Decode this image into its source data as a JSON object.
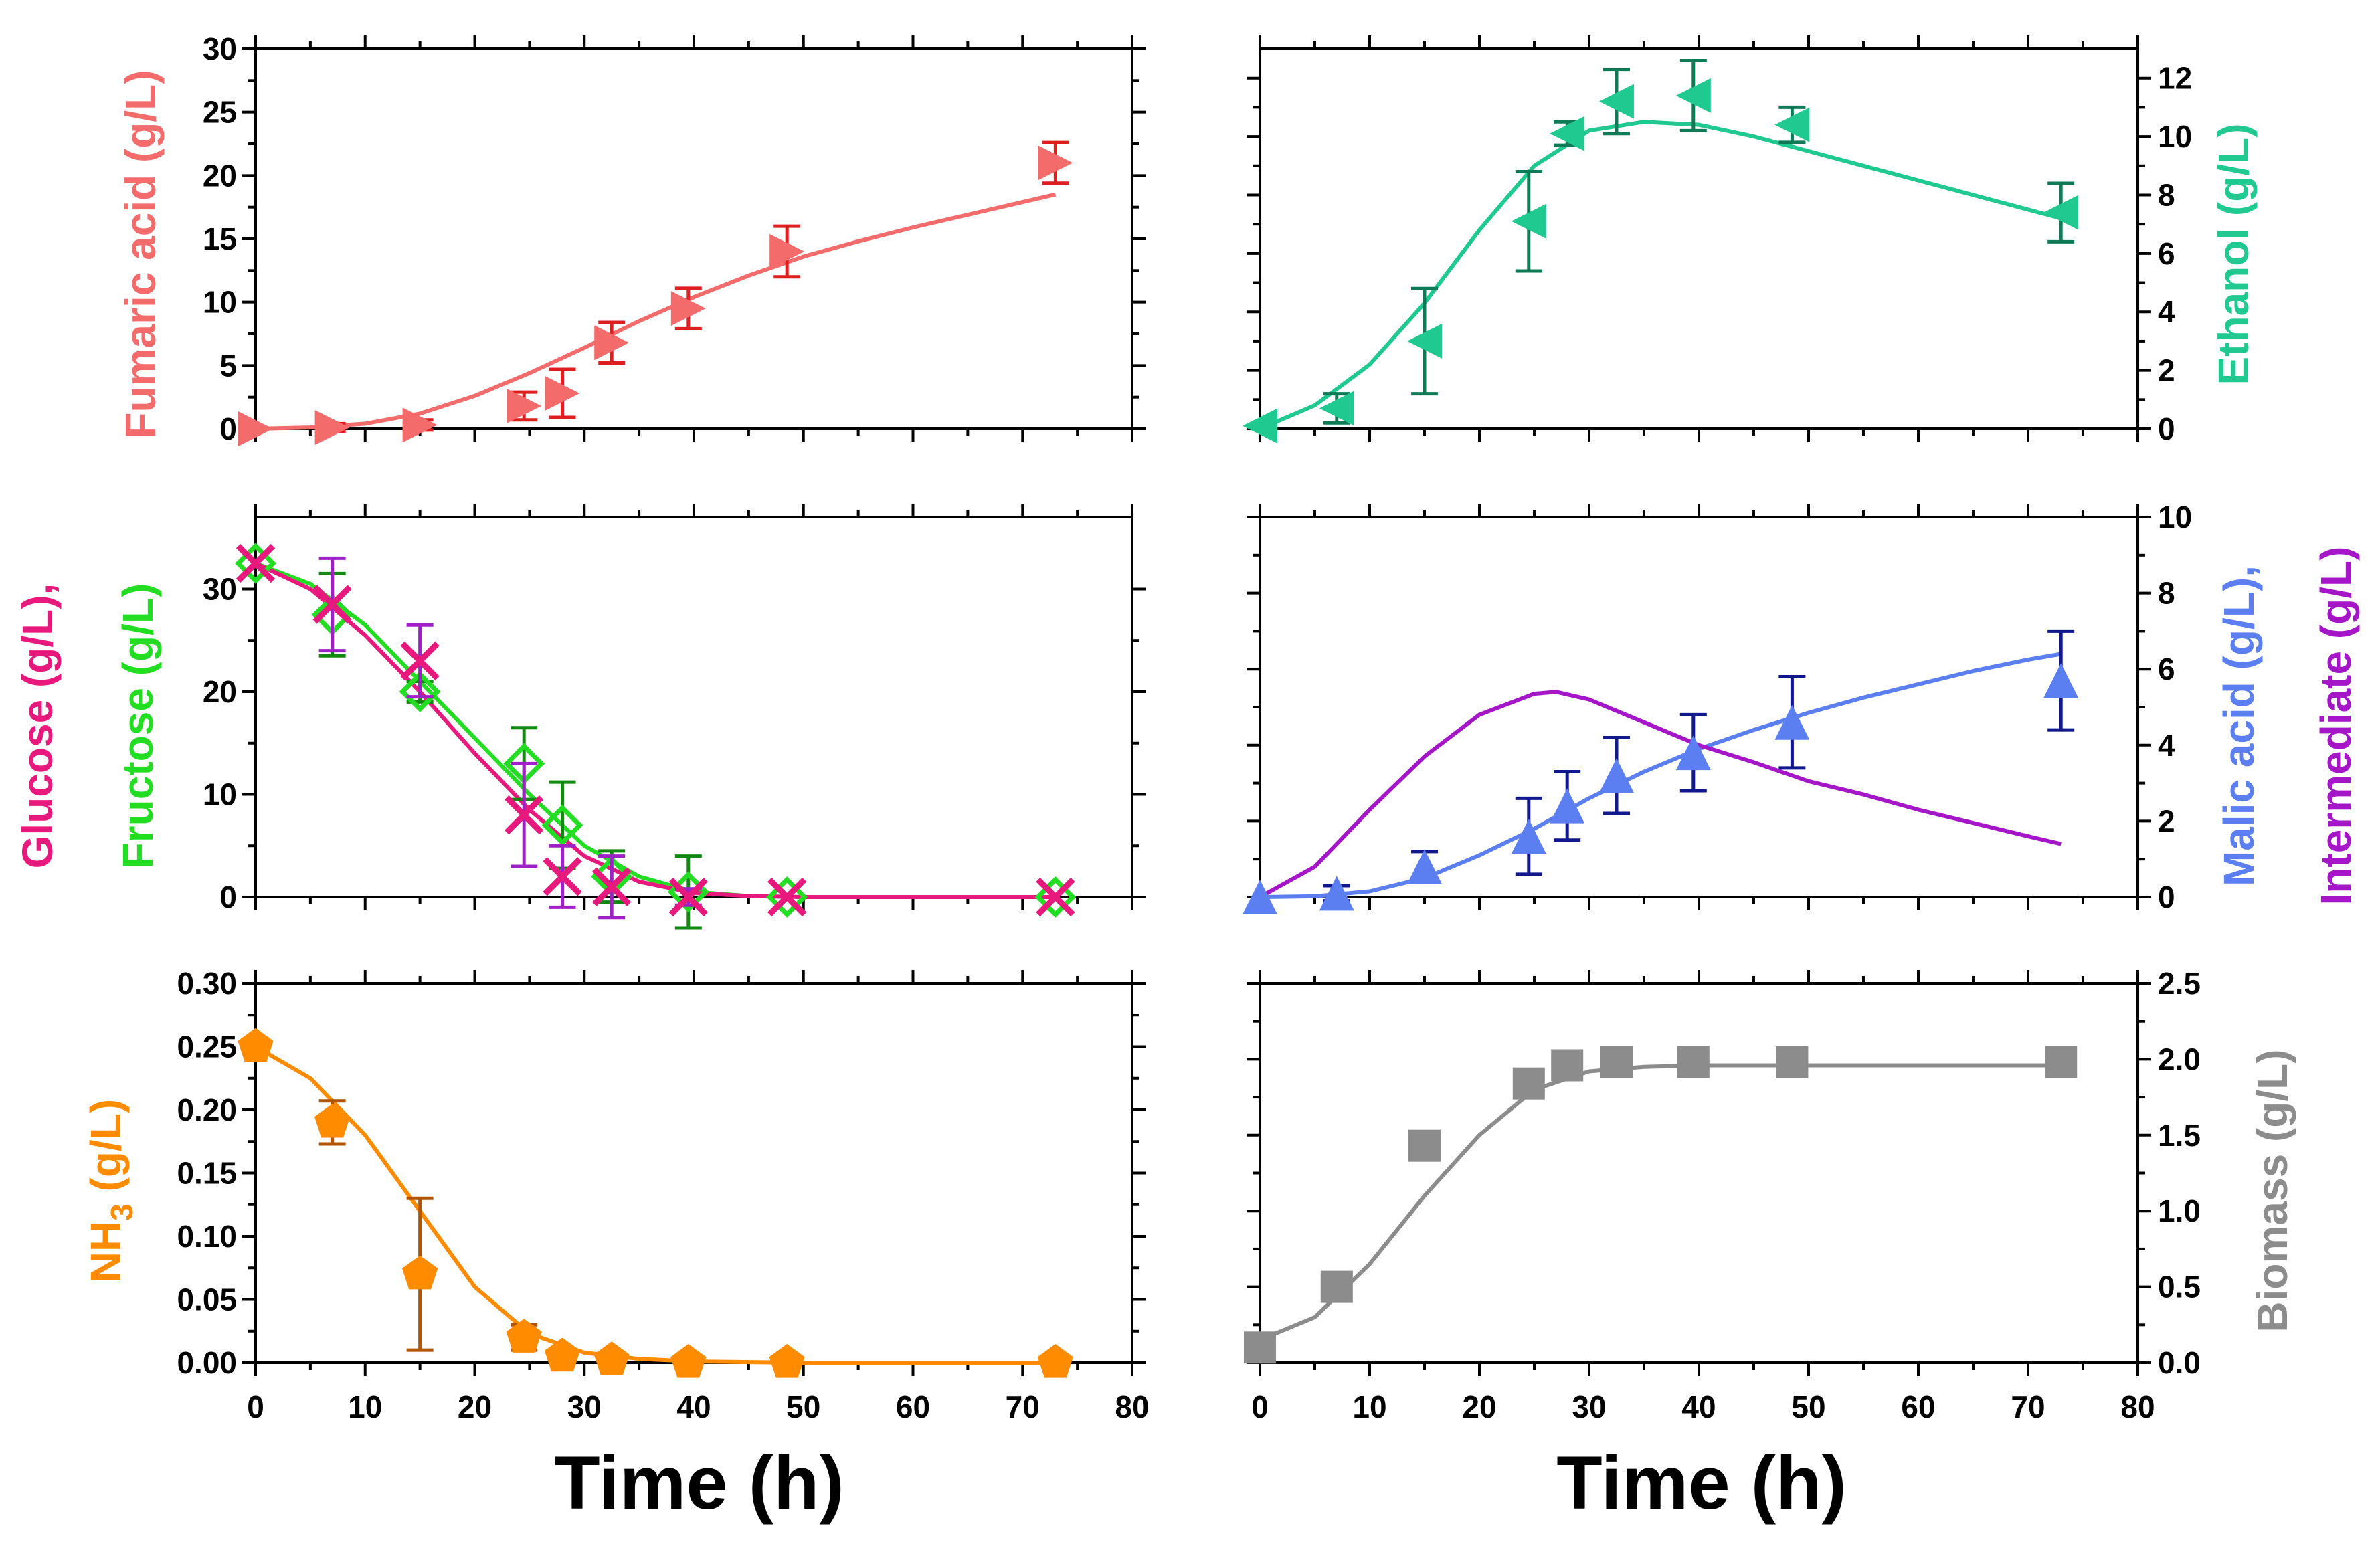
{
  "figure": {
    "xlabel_left": "Time (h)",
    "xlabel_right": "Time (h)"
  },
  "chart_data": [
    {
      "id": "fumaric",
      "type": "scatter",
      "position": "top-left",
      "ylabel": "Fumaric acid (g/L)",
      "ylabel_color": "#f46b6b",
      "axis_side": "left",
      "xlim": [
        0,
        80
      ],
      "ylim": [
        0,
        30
      ],
      "yticks": [
        0,
        5,
        10,
        15,
        20,
        25,
        30
      ],
      "ytick_labels": [
        "0",
        "5",
        "10",
        "15",
        "20",
        "25",
        "30"
      ],
      "xticks": [
        0,
        10,
        20,
        30,
        40,
        50,
        60,
        70,
        80
      ],
      "xtick_labels": [],
      "series": [
        {
          "name": "Fumaric acid",
          "marker": "triangle-right",
          "color": "#f46b6b",
          "err_color": "#dd1f1f",
          "x": [
            0,
            7,
            15,
            24.5,
            28,
            32.5,
            39.5,
            48.5,
            73
          ],
          "y": [
            0,
            0.1,
            0.3,
            1.8,
            2.8,
            6.8,
            9.5,
            14,
            21
          ],
          "err": [
            0,
            0.3,
            0.4,
            1.1,
            1.9,
            1.6,
            1.6,
            2.0,
            1.6
          ],
          "fit_x": [
            0,
            5,
            10,
            15,
            20,
            25,
            30,
            35,
            40,
            45,
            50,
            55,
            60,
            65,
            70,
            73
          ],
          "fit_y": [
            0,
            0.1,
            0.4,
            1.2,
            2.6,
            4.4,
            6.4,
            8.5,
            10.4,
            12.1,
            13.6,
            14.8,
            15.9,
            16.9,
            17.9,
            18.5
          ],
          "fit_color": "#f46b6b"
        }
      ]
    },
    {
      "id": "ethanol",
      "type": "scatter",
      "position": "top-right",
      "ylabel": "Ethanol (g/L)",
      "ylabel_color": "#1fc98f",
      "axis_side": "right",
      "xlim": [
        0,
        80
      ],
      "ylim": [
        0,
        13
      ],
      "yticks": [
        0,
        2,
        4,
        6,
        8,
        10,
        12
      ],
      "ytick_labels": [
        "0",
        "2",
        "4",
        "6",
        "8",
        "10",
        "12"
      ],
      "xticks": [
        0,
        10,
        20,
        30,
        40,
        50,
        60,
        70,
        80
      ],
      "xtick_labels": [],
      "series": [
        {
          "name": "Ethanol",
          "marker": "triangle-left",
          "color": "#1fc98f",
          "err_color": "#0f7a55",
          "x": [
            0,
            7,
            15,
            24.5,
            28,
            32.5,
            39.5,
            48.5,
            73
          ],
          "y": [
            0.1,
            0.7,
            3.0,
            7.1,
            10.1,
            11.2,
            11.4,
            10.4,
            7.4
          ],
          "err": [
            0,
            0.5,
            1.8,
            1.7,
            0.4,
            1.1,
            1.2,
            0.6,
            1.0
          ],
          "fit_x": [
            0,
            5,
            10,
            15,
            20,
            25,
            30,
            35,
            40,
            45,
            50,
            55,
            60,
            65,
            70,
            73
          ],
          "fit_y": [
            0,
            0.8,
            2.2,
            4.3,
            6.8,
            9.0,
            10.2,
            10.5,
            10.4,
            10.0,
            9.5,
            9.0,
            8.5,
            8.0,
            7.5,
            7.2
          ],
          "fit_color": "#1fc98f"
        }
      ]
    },
    {
      "id": "sugars",
      "type": "scatter",
      "position": "middle-left",
      "ylabel_parts": [
        {
          "text": "Glucose (g/L),",
          "color": "#e8197d"
        },
        {
          "text": "Fructose (g/L)",
          "color": "#22dd22"
        }
      ],
      "axis_side": "left",
      "xlim": [
        0,
        80
      ],
      "ylim": [
        0,
        37
      ],
      "yticks": [
        0,
        10,
        20,
        30
      ],
      "ytick_labels": [
        "0",
        "10",
        "20",
        "30"
      ],
      "xticks": [
        0,
        10,
        20,
        30,
        40,
        50,
        60,
        70,
        80
      ],
      "xtick_labels": [],
      "series": [
        {
          "name": "Fructose",
          "marker": "diamond-open",
          "color": "#22dd22",
          "err_color": "#128a12",
          "x": [
            0,
            7,
            15,
            24.5,
            28,
            32.5,
            39.5,
            48.5,
            73
          ],
          "y": [
            32.5,
            27.5,
            20,
            13,
            7,
            2,
            0.5,
            0,
            0
          ],
          "err": [
            0,
            4.0,
            1.0,
            3.5,
            4.2,
            2.5,
            3.5,
            0,
            0
          ],
          "fit_x": [
            0,
            5,
            10,
            15,
            20,
            25,
            30,
            35,
            40,
            45,
            50,
            60,
            73
          ],
          "fit_y": [
            32.5,
            30.5,
            26.5,
            21.0,
            15.5,
            10.0,
            5.0,
            2.0,
            0.5,
            0.1,
            0,
            0,
            0
          ],
          "fit_color": "#22dd22"
        },
        {
          "name": "Glucose",
          "marker": "x",
          "color": "#e8197d",
          "err_color": "#a020c8",
          "x": [
            0,
            7,
            15,
            24.5,
            28,
            32.5,
            39.5,
            48.5,
            73
          ],
          "y": [
            32.5,
            28.5,
            23,
            8,
            2,
            1,
            0,
            0,
            0
          ],
          "err": [
            0,
            4.5,
            3.5,
            5.0,
            3.0,
            3.0,
            0.8,
            0,
            0
          ],
          "fit_x": [
            0,
            5,
            10,
            15,
            20,
            25,
            30,
            35,
            40,
            45,
            50,
            60,
            73
          ],
          "fit_y": [
            32.5,
            30.0,
            25.5,
            20.0,
            14.0,
            8.5,
            4.0,
            1.5,
            0.4,
            0.1,
            0,
            0,
            0
          ],
          "fit_color": "#e8197d"
        }
      ]
    },
    {
      "id": "malic",
      "type": "scatter",
      "position": "middle-right",
      "ylabel_parts": [
        {
          "text": "Malic acid (g/L),",
          "color": "#5b7ef0"
        },
        {
          "text": "Intermediate (g/L)",
          "color": "#a516c8"
        }
      ],
      "axis_side": "right",
      "xlim": [
        0,
        80
      ],
      "ylim": [
        0,
        10
      ],
      "yticks": [
        0,
        2,
        4,
        6,
        8,
        10
      ],
      "ytick_labels": [
        "0",
        "2",
        "4",
        "6",
        "8",
        "10"
      ],
      "xticks": [
        0,
        10,
        20,
        30,
        40,
        50,
        60,
        70,
        80
      ],
      "xtick_labels": [],
      "series": [
        {
          "name": "Malic acid",
          "marker": "triangle-up",
          "color": "#5b7ef0",
          "err_color": "#10188c",
          "x": [
            0,
            7,
            15,
            24.5,
            28,
            32.5,
            39.5,
            48.5,
            73
          ],
          "y": [
            0,
            0.1,
            0.8,
            1.6,
            2.4,
            3.2,
            3.8,
            4.6,
            5.7
          ],
          "err": [
            0,
            0.2,
            0.4,
            1.0,
            0.9,
            1.0,
            1.0,
            1.2,
            1.3
          ],
          "fit_x": [
            0,
            5,
            10,
            15,
            20,
            25,
            30,
            35,
            40,
            45,
            50,
            55,
            60,
            65,
            70,
            73
          ],
          "fit_y": [
            0,
            0.02,
            0.15,
            0.5,
            1.1,
            1.8,
            2.6,
            3.3,
            3.9,
            4.4,
            4.85,
            5.25,
            5.6,
            5.95,
            6.25,
            6.4
          ],
          "fit_color": "#5b7ef0"
        },
        {
          "name": "Intermediate",
          "marker": "none",
          "color": "#a516c8",
          "x": [],
          "y": [],
          "err": [],
          "fit_x": [
            0,
            5,
            10,
            15,
            20,
            25,
            27,
            30,
            35,
            40,
            45,
            50,
            55,
            60,
            65,
            70,
            73
          ],
          "fit_y": [
            0,
            0.8,
            2.3,
            3.7,
            4.8,
            5.35,
            5.4,
            5.2,
            4.6,
            4.0,
            3.55,
            3.05,
            2.7,
            2.3,
            1.95,
            1.6,
            1.4
          ],
          "fit_color": "#a516c8"
        }
      ]
    },
    {
      "id": "nh3",
      "type": "scatter",
      "position": "bottom-left",
      "ylabel_main": "NH",
      "ylabel_sub": "3",
      "ylabel_tail": " (g/L)",
      "ylabel_color": "#ff8c00",
      "axis_side": "left",
      "xlim": [
        0,
        80
      ],
      "ylim": [
        0,
        0.3
      ],
      "yticks": [
        0,
        0.05,
        0.1,
        0.15,
        0.2,
        0.25,
        0.3
      ],
      "ytick_labels": [
        "0.00",
        "0.05",
        "0.10",
        "0.15",
        "0.20",
        "0.25",
        "0.30"
      ],
      "xticks": [
        0,
        10,
        20,
        30,
        40,
        50,
        60,
        70,
        80
      ],
      "xtick_labels": [
        "0",
        "10",
        "20",
        "30",
        "40",
        "50",
        "60",
        "70",
        "80"
      ],
      "series": [
        {
          "name": "NH3",
          "marker": "pentagon",
          "color": "#ff8c00",
          "err_color": "#b35500",
          "x": [
            0,
            7,
            15,
            24.5,
            28,
            32.5,
            39.5,
            48.5,
            73
          ],
          "y": [
            0.25,
            0.19,
            0.07,
            0.02,
            0.005,
            0.002,
            0,
            0,
            0
          ],
          "err": [
            0,
            0.017,
            0.06,
            0.01,
            0,
            0,
            0,
            0,
            0
          ],
          "fit_x": [
            0,
            5,
            10,
            15,
            20,
            25,
            30,
            35,
            40,
            50,
            60,
            73
          ],
          "fit_y": [
            0.25,
            0.225,
            0.18,
            0.12,
            0.06,
            0.023,
            0.008,
            0.003,
            0.001,
            0,
            0,
            0
          ],
          "fit_color": "#ff8c00"
        }
      ]
    },
    {
      "id": "biomass",
      "type": "scatter",
      "position": "bottom-right",
      "ylabel": "Biomass (g/L)",
      "ylabel_color": "#8c8c8c",
      "axis_side": "right",
      "xlim": [
        0,
        80
      ],
      "ylim": [
        0,
        2.5
      ],
      "yticks": [
        0,
        0.5,
        1,
        1.5,
        2,
        2.5
      ],
      "ytick_labels": [
        "0.0",
        "0.5",
        "1.0",
        "1.5",
        "2.0",
        "2.5"
      ],
      "xticks": [
        0,
        10,
        20,
        30,
        40,
        50,
        60,
        70,
        80
      ],
      "xtick_labels": [
        "0",
        "10",
        "20",
        "30",
        "40",
        "50",
        "60",
        "70",
        "80"
      ],
      "series": [
        {
          "name": "Biomass",
          "marker": "square",
          "color": "#8c8c8c",
          "err_color": "#555555",
          "x": [
            0,
            7,
            15,
            24.5,
            28,
            32.5,
            39.5,
            48.5,
            73
          ],
          "y": [
            0.1,
            0.5,
            1.43,
            1.84,
            1.96,
            1.98,
            1.98,
            1.98,
            1.98
          ],
          "err": [
            0,
            0,
            0,
            0,
            0,
            0,
            0,
            0,
            0
          ],
          "fit_x": [
            0,
            5,
            10,
            15,
            20,
            25,
            30,
            35,
            40,
            50,
            60,
            73
          ],
          "fit_y": [
            0.15,
            0.3,
            0.65,
            1.1,
            1.5,
            1.8,
            1.92,
            1.95,
            1.96,
            1.96,
            1.96,
            1.96
          ],
          "fit_color": "#8c8c8c"
        }
      ]
    }
  ]
}
